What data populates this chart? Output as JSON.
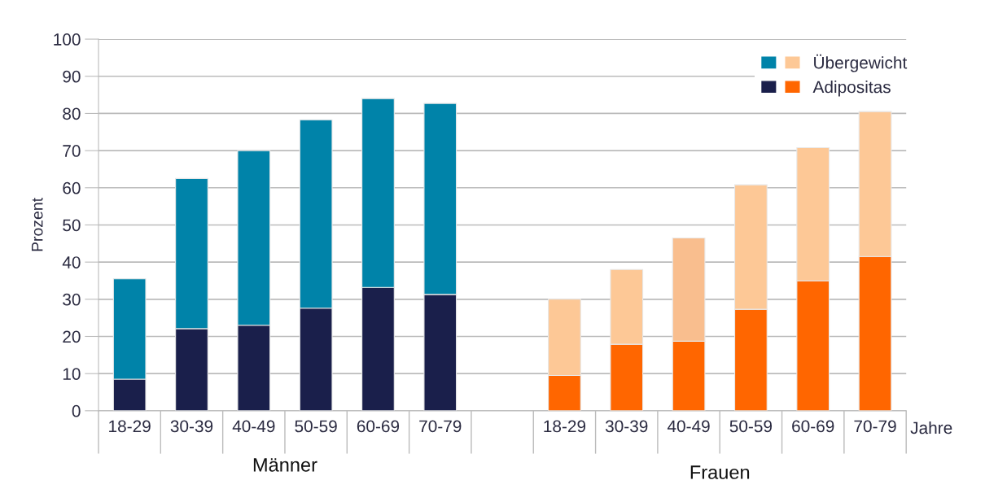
{
  "chart_data": {
    "type": "bar",
    "stacked": true,
    "ylabel": "Prozent",
    "xlabel": "Jahre",
    "categories": [
      "18-29",
      "30-39",
      "40-49",
      "50-59",
      "60-69",
      "70-79",
      null,
      "18-29",
      "30-39",
      "40-49",
      "50-59",
      "60-69",
      "70-79"
    ],
    "series": [
      {
        "name": "Adipositas",
        "colors": [
          "#1a1f4b",
          "#1a1f4b",
          "#1a1f4b",
          "#1a1f4b",
          "#1a1f4b",
          "#1a1f4b",
          "#1a1f4b",
          "#ff6600",
          "#ff6600",
          "#ff6600",
          "#ff6600",
          "#ff6600",
          "#ff6600"
        ],
        "values": [
          8.5,
          22.1,
          23,
          27.6,
          33.2,
          31.3,
          null,
          9.5,
          17.9,
          18.7,
          27.3,
          35,
          41.5
        ]
      },
      {
        "name": "Übergewicht",
        "colors": [
          "#0083a9",
          "#0083a9",
          "#0083a9",
          "#0083a9",
          "#0083a9",
          "#0083a9",
          "#0083a9",
          "#fdc896",
          "#fdc896",
          "#f9be8e",
          "#fdc896",
          "#fdc896",
          "#fdc896"
        ],
        "values": [
          27,
          40.4,
          47,
          50.7,
          50.8,
          51.4,
          null,
          20.5,
          20.1,
          27.8,
          33.5,
          35.8,
          39
        ]
      }
    ],
    "ylim": [
      0,
      100
    ],
    "yticks": [
      0,
      10,
      20,
      30,
      40,
      50,
      60,
      70,
      80,
      90,
      100
    ],
    "grid": "y",
    "legend": "top right",
    "annotations": [
      "Männer",
      "Frauen"
    ]
  }
}
